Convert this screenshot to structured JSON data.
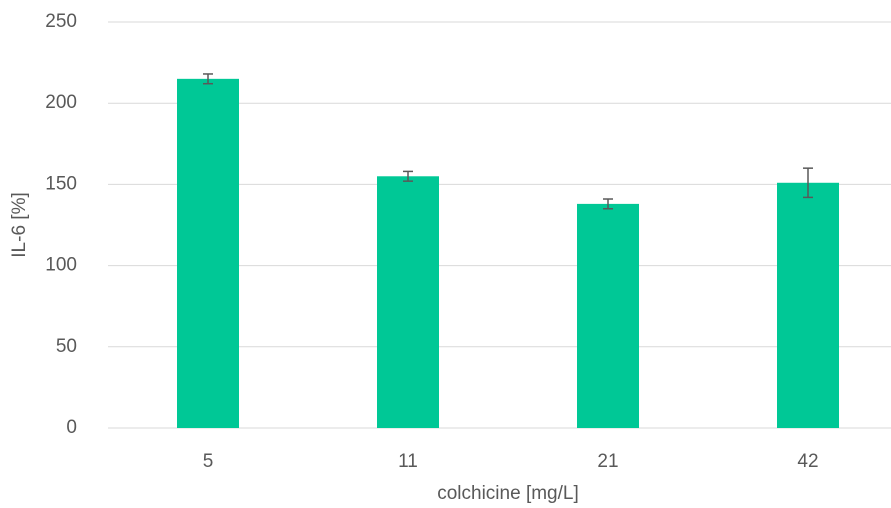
{
  "chart_data": {
    "type": "bar",
    "categories": [
      "5",
      "11",
      "21",
      "42"
    ],
    "values": [
      215,
      155,
      138,
      151
    ],
    "errors": [
      3,
      3,
      3,
      9
    ],
    "color": "#00c896",
    "xlabel": "colchicine [mg/L]",
    "ylabel": "IL-6 [%]",
    "ylim": [
      0,
      250
    ],
    "yticks": [
      0,
      50,
      100,
      150,
      200,
      250
    ],
    "grid": true
  }
}
